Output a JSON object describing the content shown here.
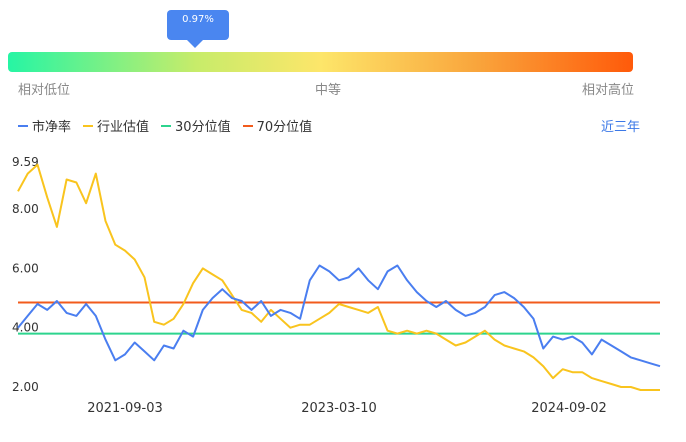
{
  "indicator": {
    "tooltip": "0.97%",
    "percentile": 0.0097,
    "labels": {
      "low": "相对低位",
      "mid": "中等",
      "high": "相对高位"
    }
  },
  "legend": {
    "pb": "市净率",
    "industry": "行业估值",
    "p30": "30分位值",
    "p70": "70分位值"
  },
  "range_button": "近三年",
  "colors": {
    "pb": "#4a7ef0",
    "industry": "#f9c41e",
    "p30": "#2dd48e",
    "p70": "#f25b1c"
  },
  "chart_data": {
    "type": "line",
    "x_ticks": [
      "2021-09-03",
      "2023-03-10",
      "2024-09-02"
    ],
    "y_ticks": [
      "2.00",
      "4.00",
      "6.00",
      "8.00",
      "9.59"
    ],
    "ylim": [
      2.0,
      9.59
    ],
    "reference_lines": [
      {
        "name": "30分位值",
        "value": 3.8
      },
      {
        "name": "70分位值",
        "value": 4.85
      }
    ],
    "series": [
      {
        "name": "市净率",
        "values": [
          4.0,
          4.4,
          4.8,
          4.6,
          4.9,
          4.5,
          4.4,
          4.8,
          4.4,
          3.6,
          2.9,
          3.1,
          3.5,
          3.2,
          2.9,
          3.4,
          3.3,
          3.9,
          3.7,
          4.6,
          5.0,
          5.3,
          5.0,
          4.9,
          4.6,
          4.9,
          4.4,
          4.6,
          4.5,
          4.3,
          5.6,
          6.1,
          5.9,
          5.6,
          5.7,
          6.0,
          5.6,
          5.3,
          5.9,
          6.1,
          5.6,
          5.2,
          4.9,
          4.7,
          4.9,
          4.6,
          4.4,
          4.5,
          4.7,
          5.1,
          5.2,
          5.0,
          4.7,
          4.3,
          3.3,
          3.7,
          3.6,
          3.7,
          3.5,
          3.1,
          3.6,
          3.4,
          3.2,
          3.0,
          2.9,
          2.8,
          2.7
        ]
      },
      {
        "name": "行业估值",
        "values": [
          8.6,
          9.2,
          9.5,
          8.4,
          7.4,
          9.0,
          8.9,
          8.2,
          9.2,
          7.6,
          6.8,
          6.6,
          6.3,
          5.7,
          4.2,
          4.1,
          4.3,
          4.8,
          5.5,
          6.0,
          5.8,
          5.6,
          5.1,
          4.6,
          4.5,
          4.2,
          4.6,
          4.3,
          4.0,
          4.1,
          4.1,
          4.3,
          4.5,
          4.8,
          4.7,
          4.6,
          4.5,
          4.7,
          3.9,
          3.8,
          3.9,
          3.8,
          3.9,
          3.8,
          3.6,
          3.4,
          3.5,
          3.7,
          3.9,
          3.6,
          3.4,
          3.3,
          3.2,
          3.0,
          2.7,
          2.3,
          2.6,
          2.5,
          2.5,
          2.3,
          2.2,
          2.1,
          2.0,
          2.0,
          1.9,
          1.9,
          1.9
        ]
      }
    ]
  }
}
